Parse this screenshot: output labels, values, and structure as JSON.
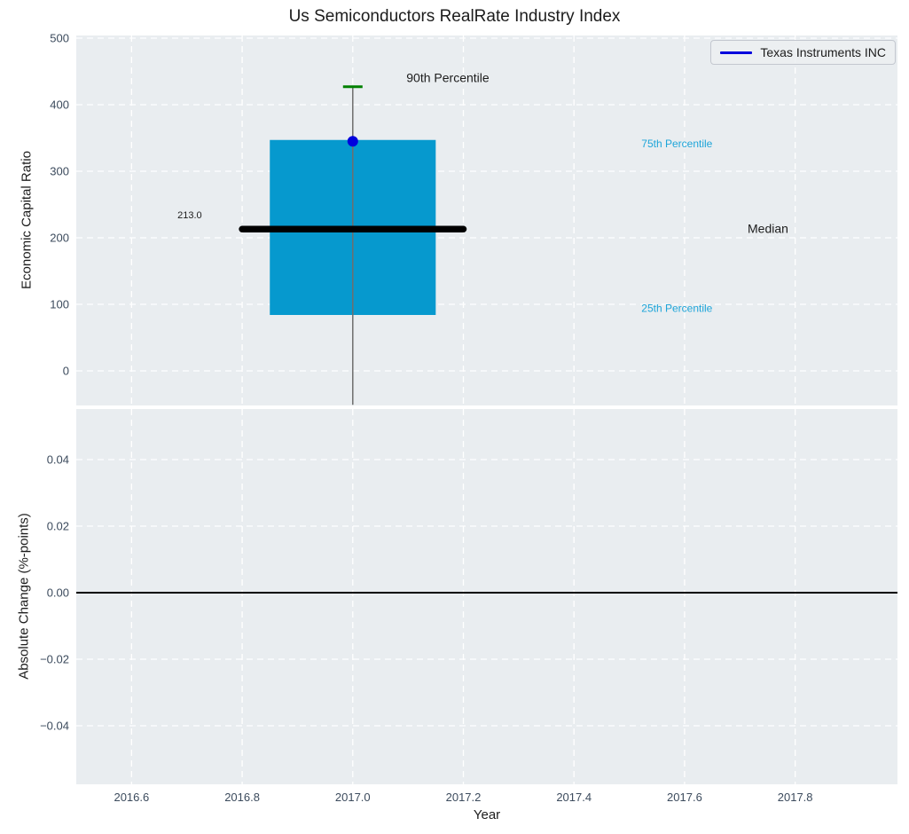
{
  "title": "Us Semiconductors RealRate Industry Index",
  "legend": {
    "label": "Texas Instruments INC",
    "line_color": "#0000dd"
  },
  "colors": {
    "figure_bg": "#ffffff",
    "axes_bg": "#e9edf0",
    "grid": "#ffffff",
    "tick_label": "#3c4b5d",
    "text": "#1c1c1c",
    "percentile_label": "#1ea5d9"
  },
  "chart_data": {
    "type": "boxplot",
    "x_axis": {
      "label": "Year",
      "lim": [
        2016.5,
        2017.985
      ],
      "ticks": [
        {
          "v": 2016.6,
          "label": "2016.6"
        },
        {
          "v": 2016.8,
          "label": "2016.8"
        },
        {
          "v": 2017.0,
          "label": "2017.0"
        },
        {
          "v": 2017.2,
          "label": "2017.2"
        },
        {
          "v": 2017.4,
          "label": "2017.4"
        },
        {
          "v": 2017.6,
          "label": "2017.6"
        },
        {
          "v": 2017.8,
          "label": "2017.8"
        }
      ]
    },
    "top": {
      "ylabel": "Economic Capital Ratio",
      "ylim": [
        -52,
        504
      ],
      "y_ticks": [
        {
          "v": 0,
          "label": "0"
        },
        {
          "v": 100,
          "label": "100"
        },
        {
          "v": 200,
          "label": "200"
        },
        {
          "v": 300,
          "label": "300"
        },
        {
          "v": 400,
          "label": "400"
        },
        {
          "v": 500,
          "label": "500"
        }
      ],
      "box": {
        "center_x": 2017.0,
        "box_half_width": 0.15,
        "median_half_width": 0.2,
        "q1": 84,
        "median": 213.0,
        "q3": 347,
        "p90": 427,
        "whisker_draw_low": -51,
        "box_color": "#0699ce",
        "median_color": "#000000",
        "whisker_color": "#6e6e6e",
        "cap90_color": "#008000"
      },
      "point": {
        "label": "Texas Instruments INC",
        "x": 2017.0,
        "y": 345,
        "color": "#0000dd",
        "radius": 6
      },
      "annotations": [
        {
          "id": "label-90th-percentile",
          "text": "90th Percentile",
          "x": 2017.097,
          "y": 439,
          "color": "#1c1c1c",
          "size": 14
        },
        {
          "id": "label-75th-percentile",
          "text": "75th Percentile",
          "x": 2017.522,
          "y": 340,
          "color": "#1ea5d9",
          "size": 12
        },
        {
          "id": "label-median",
          "text": "Median",
          "x": 2017.714,
          "y": 212,
          "color": "#1c1c1c",
          "size": 14
        },
        {
          "id": "label-25th-percentile",
          "text": "25th Percentile",
          "x": 2017.522,
          "y": 93,
          "color": "#1ea5d9",
          "size": 12
        },
        {
          "id": "label-median-value",
          "text": "213.0",
          "x": 2016.683,
          "y": 233,
          "color": "#1c1c1c",
          "size": 11
        }
      ]
    },
    "bottom": {
      "ylabel": "Absolute Change (%-points)",
      "ylim": [
        -0.0576,
        0.0552
      ],
      "y_ticks": [
        {
          "v": -0.04,
          "label": "−0.04"
        },
        {
          "v": -0.02,
          "label": "−0.02"
        },
        {
          "v": 0.0,
          "label": "0.00"
        },
        {
          "v": 0.02,
          "label": "0.02"
        },
        {
          "v": 0.04,
          "label": "0.04"
        }
      ],
      "zero_line": {
        "y": 0.0,
        "color": "#000000"
      }
    }
  }
}
